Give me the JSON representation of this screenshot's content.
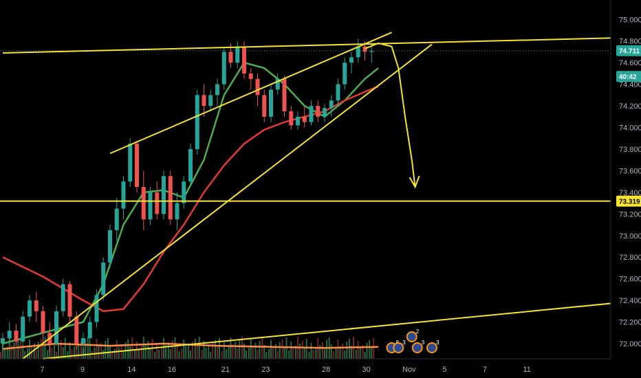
{
  "chart_data": {
    "type": "candlestick",
    "symbol_timeframe_note": "",
    "y_axis": {
      "range": [
        71.86,
        75.18
      ],
      "ticks": [
        "75.000",
        "74.800",
        "74.600",
        "74.400",
        "74.200",
        "74.000",
        "73.800",
        "73.600",
        "73.400",
        "73.200",
        "73.000",
        "72.800",
        "72.600",
        "72.400",
        "72.200",
        "72.000"
      ],
      "tick_values": [
        75.0,
        74.8,
        74.6,
        74.4,
        74.2,
        74.0,
        73.8,
        73.6,
        73.4,
        73.2,
        73.0,
        72.8,
        72.6,
        72.4,
        72.2,
        72.0
      ]
    },
    "x_axis": {
      "ticks": [
        "7",
        "9",
        "14",
        "16",
        "21",
        "23",
        "28",
        "30",
        "Nov",
        "5",
        "7",
        "11"
      ],
      "tick_index": [
        6,
        12,
        19,
        25,
        33,
        39,
        48,
        54,
        60,
        66,
        72,
        78
      ]
    },
    "price_tags": [
      {
        "label": "74.711",
        "value": 74.711,
        "bg": "#26a69a"
      },
      {
        "label": "40:42",
        "value": 74.6,
        "bg": "#26a69a"
      },
      {
        "label": "73.319",
        "value": 73.319,
        "bg": "#f5e52f"
      }
    ],
    "horizontal_lines": [
      {
        "value": 73.319,
        "color": "#f5e52f"
      },
      {
        "value": 74.711,
        "color": "#26a69a",
        "dotted": true
      }
    ],
    "trend_lines": [
      {
        "color": "#f5e52f",
        "from": [
          0,
          74.69
        ],
        "to": [
          92,
          74.83
        ]
      },
      {
        "color": "#f5e52f",
        "from": [
          16,
          73.76
        ],
        "to": [
          58,
          74.88
        ]
      },
      {
        "color": "#f5e52f",
        "from": [
          3,
          71.86
        ],
        "to": [
          64,
          74.77
        ]
      },
      {
        "color": "#f5e52f",
        "from": [
          6,
          71.86
        ],
        "to": [
          92,
          72.38
        ]
      }
    ],
    "candles": [
      {
        "o": 72.0,
        "h": 72.1,
        "l": 71.95,
        "c": 72.05
      },
      {
        "o": 72.05,
        "h": 72.2,
        "l": 72.0,
        "c": 72.12
      },
      {
        "o": 72.12,
        "h": 72.18,
        "l": 71.98,
        "c": 72.02
      },
      {
        "o": 72.02,
        "h": 72.3,
        "l": 72.0,
        "c": 72.25
      },
      {
        "o": 72.25,
        "h": 72.45,
        "l": 72.2,
        "c": 72.4
      },
      {
        "o": 72.4,
        "h": 72.48,
        "l": 72.2,
        "c": 72.3
      },
      {
        "o": 72.3,
        "h": 72.35,
        "l": 72.0,
        "c": 72.1
      },
      {
        "o": 72.1,
        "h": 72.2,
        "l": 71.92,
        "c": 72.0
      },
      {
        "o": 72.0,
        "h": 72.35,
        "l": 71.98,
        "c": 72.3
      },
      {
        "o": 72.3,
        "h": 72.6,
        "l": 72.25,
        "c": 72.55
      },
      {
        "o": 72.55,
        "h": 72.58,
        "l": 72.2,
        "c": 72.25
      },
      {
        "o": 72.25,
        "h": 72.3,
        "l": 71.95,
        "c": 72.0
      },
      {
        "o": 72.0,
        "h": 72.1,
        "l": 71.9,
        "c": 72.05
      },
      {
        "o": 72.05,
        "h": 72.25,
        "l": 72.0,
        "c": 72.2
      },
      {
        "o": 72.2,
        "h": 72.5,
        "l": 72.15,
        "c": 72.45
      },
      {
        "o": 72.45,
        "h": 72.8,
        "l": 72.4,
        "c": 72.75
      },
      {
        "o": 72.75,
        "h": 73.1,
        "l": 72.7,
        "c": 73.05
      },
      {
        "o": 73.05,
        "h": 73.35,
        "l": 72.95,
        "c": 73.25
      },
      {
        "o": 73.25,
        "h": 73.55,
        "l": 73.15,
        "c": 73.5
      },
      {
        "o": 73.5,
        "h": 73.9,
        "l": 73.45,
        "c": 73.85
      },
      {
        "o": 73.85,
        "h": 73.88,
        "l": 73.4,
        "c": 73.45
      },
      {
        "o": 73.45,
        "h": 73.6,
        "l": 73.05,
        "c": 73.15
      },
      {
        "o": 73.15,
        "h": 73.45,
        "l": 73.1,
        "c": 73.4
      },
      {
        "o": 73.4,
        "h": 73.5,
        "l": 73.15,
        "c": 73.2
      },
      {
        "o": 73.2,
        "h": 73.6,
        "l": 73.15,
        "c": 73.55
      },
      {
        "o": 73.55,
        "h": 73.6,
        "l": 73.1,
        "c": 73.15
      },
      {
        "o": 73.15,
        "h": 73.4,
        "l": 73.05,
        "c": 73.3
      },
      {
        "o": 73.3,
        "h": 73.55,
        "l": 73.25,
        "c": 73.5
      },
      {
        "o": 73.5,
        "h": 73.85,
        "l": 73.45,
        "c": 73.8
      },
      {
        "o": 73.8,
        "h": 74.35,
        "l": 73.75,
        "c": 74.3
      },
      {
        "o": 74.3,
        "h": 74.4,
        "l": 74.1,
        "c": 74.2
      },
      {
        "o": 74.2,
        "h": 74.35,
        "l": 74.15,
        "c": 74.3
      },
      {
        "o": 74.3,
        "h": 74.45,
        "l": 74.2,
        "c": 74.4
      },
      {
        "o": 74.4,
        "h": 74.75,
        "l": 74.35,
        "c": 74.7
      },
      {
        "o": 74.7,
        "h": 74.78,
        "l": 74.55,
        "c": 74.6
      },
      {
        "o": 74.6,
        "h": 74.8,
        "l": 74.55,
        "c": 74.75
      },
      {
        "o": 74.75,
        "h": 74.8,
        "l": 74.45,
        "c": 74.5
      },
      {
        "o": 74.5,
        "h": 74.55,
        "l": 74.35,
        "c": 74.45
      },
      {
        "o": 74.45,
        "h": 74.5,
        "l": 74.2,
        "c": 74.3
      },
      {
        "o": 74.3,
        "h": 74.35,
        "l": 74.05,
        "c": 74.1
      },
      {
        "o": 74.1,
        "h": 74.4,
        "l": 74.05,
        "c": 74.35
      },
      {
        "o": 74.35,
        "h": 74.5,
        "l": 74.3,
        "c": 74.45
      },
      {
        "o": 74.45,
        "h": 74.48,
        "l": 74.1,
        "c": 74.15
      },
      {
        "o": 74.15,
        "h": 74.2,
        "l": 73.98,
        "c": 74.02
      },
      {
        "o": 74.02,
        "h": 74.15,
        "l": 73.98,
        "c": 74.1
      },
      {
        "o": 74.1,
        "h": 74.2,
        "l": 74.0,
        "c": 74.05
      },
      {
        "o": 74.05,
        "h": 74.25,
        "l": 74.02,
        "c": 74.2
      },
      {
        "o": 74.2,
        "h": 74.25,
        "l": 74.05,
        "c": 74.1
      },
      {
        "o": 74.1,
        "h": 74.22,
        "l": 74.05,
        "c": 74.18
      },
      {
        "o": 74.18,
        "h": 74.3,
        "l": 74.1,
        "c": 74.25
      },
      {
        "o": 74.25,
        "h": 74.45,
        "l": 74.2,
        "c": 74.4
      },
      {
        "o": 74.4,
        "h": 74.65,
        "l": 74.35,
        "c": 74.6
      },
      {
        "o": 74.6,
        "h": 74.7,
        "l": 74.5,
        "c": 74.65
      },
      {
        "o": 74.65,
        "h": 74.82,
        "l": 74.6,
        "c": 74.75
      },
      {
        "o": 74.75,
        "h": 74.8,
        "l": 74.62,
        "c": 74.7
      },
      {
        "o": 74.7,
        "h": 74.78,
        "l": 74.6,
        "c": 74.71
      }
    ],
    "moving_averages": [
      {
        "color": "#4caf50",
        "points": [
          [
            0,
            72.0
          ],
          [
            6,
            72.1
          ],
          [
            12,
            72.2
          ],
          [
            15,
            72.55
          ],
          [
            18,
            73.1
          ],
          [
            21,
            73.4
          ],
          [
            24,
            73.42
          ],
          [
            27,
            73.35
          ],
          [
            30,
            73.7
          ],
          [
            33,
            74.3
          ],
          [
            36,
            74.6
          ],
          [
            39,
            74.55
          ],
          [
            42,
            74.4
          ],
          [
            45,
            74.2
          ],
          [
            48,
            74.1
          ],
          [
            51,
            74.25
          ],
          [
            54,
            74.45
          ],
          [
            56,
            74.55
          ]
        ]
      },
      {
        "color": "#e53935",
        "points": [
          [
            0,
            72.8
          ],
          [
            6,
            72.62
          ],
          [
            12,
            72.4
          ],
          [
            15,
            72.3
          ],
          [
            18,
            72.32
          ],
          [
            21,
            72.55
          ],
          [
            24,
            72.85
          ],
          [
            27,
            73.1
          ],
          [
            30,
            73.4
          ],
          [
            33,
            73.65
          ],
          [
            36,
            73.85
          ],
          [
            39,
            73.98
          ],
          [
            42,
            74.05
          ],
          [
            45,
            74.1
          ],
          [
            48,
            74.15
          ],
          [
            51,
            74.25
          ],
          [
            54,
            74.33
          ],
          [
            56,
            74.38
          ]
        ]
      },
      {
        "color": "#ff8c42",
        "points": [
          [
            0,
            71.95
          ],
          [
            8,
            72.0
          ],
          [
            16,
            71.98
          ],
          [
            24,
            72.0
          ],
          [
            32,
            71.98
          ],
          [
            40,
            71.97
          ],
          [
            48,
            71.96
          ],
          [
            56,
            71.97
          ]
        ]
      }
    ],
    "projection": {
      "color": "#f5e52f",
      "points": [
        [
          54,
          74.73
        ],
        [
          56,
          74.78
        ],
        [
          58,
          74.75
        ],
        [
          59,
          74.55
        ],
        [
          60,
          74.1
        ],
        [
          61,
          73.7
        ],
        [
          61.5,
          73.45
        ]
      ]
    },
    "events": [
      {
        "index": 58,
        "label": "8"
      },
      {
        "index": 59,
        "label": "3"
      },
      {
        "index": 61,
        "label": "2"
      },
      {
        "index": 61,
        "label": "3"
      },
      {
        "index": 64,
        "label": "3"
      }
    ]
  }
}
